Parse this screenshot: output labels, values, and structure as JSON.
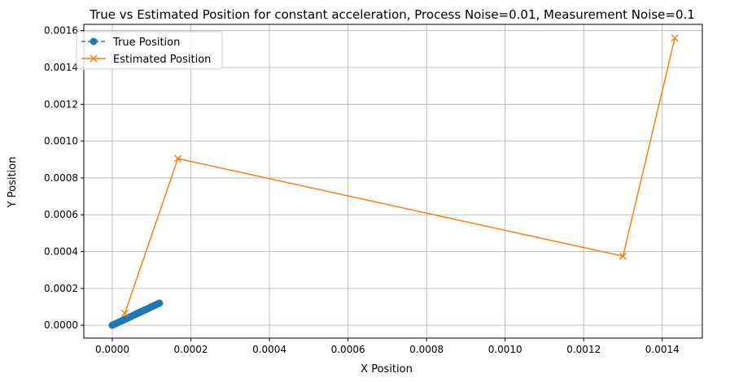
{
  "chart_data": {
    "type": "line",
    "title": "True vs Estimated Position for constant acceleration, Process Noise=0.01, Measurement Noise=0.1",
    "xlabel": "X Position",
    "ylabel": "Y Position",
    "xlim": [
      -7.25e-05,
      0.001502
    ],
    "ylim": [
      -7e-05,
      0.001634
    ],
    "xticks": [
      0.0,
      0.0002,
      0.0004,
      0.0006,
      0.0008,
      0.001,
      0.0012,
      0.0014
    ],
    "xtick_labels": [
      "0.0000",
      "0.0002",
      "0.0004",
      "0.0006",
      "0.0008",
      "0.0010",
      "0.0012",
      "0.0014"
    ],
    "yticks": [
      0.0,
      0.0002,
      0.0004,
      0.0006,
      0.0008,
      0.001,
      0.0012,
      0.0014,
      0.0016
    ],
    "ytick_labels": [
      "0.0000",
      "0.0002",
      "0.0004",
      "0.0006",
      "0.0008",
      "0.0010",
      "0.0012",
      "0.0014",
      "0.0016"
    ],
    "grid": true,
    "legend_position": "top-left",
    "series": [
      {
        "name": "True Position",
        "color": "#1f77b4",
        "marker": "circle",
        "linestyle": "dashed",
        "x": [
          0.0,
          5e-06,
          1e-05,
          1.5e-05,
          2e-05,
          2.5e-05,
          3e-05,
          3.5e-05,
          4e-05,
          4.5e-05,
          5e-05,
          5.5e-05,
          6e-05,
          6.5e-05,
          7e-05,
          7.5e-05,
          8e-05,
          8.5e-05,
          9e-05,
          9.5e-05,
          0.0001,
          0.000105,
          0.00011,
          0.000115,
          0.00012
        ],
        "y": [
          0.0,
          5e-06,
          1e-05,
          1.5e-05,
          2e-05,
          2.5e-05,
          3e-05,
          3.5e-05,
          4e-05,
          4.5e-05,
          5e-05,
          5.5e-05,
          6e-05,
          6.5e-05,
          7e-05,
          7.5e-05,
          8e-05,
          8.5e-05,
          9e-05,
          9.5e-05,
          0.0001,
          0.000105,
          0.00011,
          0.000115,
          0.00012
        ]
      },
      {
        "name": "Estimated Position",
        "color": "#ff7f0e",
        "marker": "x",
        "linestyle": "solid",
        "x": [
          3.2e-05,
          0.000167,
          0.0013,
          0.001432
        ],
        "y": [
          6.5e-05,
          0.000905,
          0.000375,
          0.00156
        ]
      }
    ]
  }
}
